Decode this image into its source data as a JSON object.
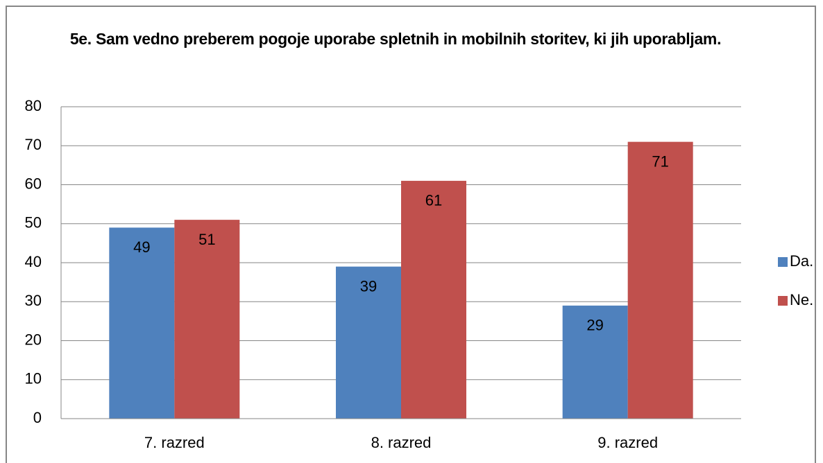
{
  "chart_data": {
    "type": "bar",
    "title": "5e. Sam vedno preberem pogoje uporabe spletnih in mobilnih storitev, ki jih uporabljam.",
    "categories": [
      "7. razred",
      "8. razred",
      "9. razred"
    ],
    "series": [
      {
        "name": "Da.",
        "color": "#4f81bd",
        "values": [
          49,
          39,
          29
        ]
      },
      {
        "name": "Ne.",
        "color": "#c0504d",
        "values": [
          51,
          61,
          71
        ]
      }
    ],
    "ylim": [
      0,
      80
    ],
    "yticks": [
      0,
      10,
      20,
      30,
      40,
      50,
      60,
      70,
      80
    ],
    "grid": true,
    "legend": "right"
  }
}
